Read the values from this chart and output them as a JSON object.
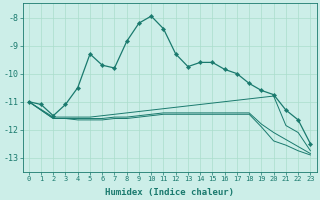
{
  "xlabel": "Humidex (Indice chaleur)",
  "xlim": [
    -0.5,
    23.5
  ],
  "ylim": [
    -13.5,
    -7.5
  ],
  "yticks": [
    -13,
    -12,
    -11,
    -10,
    -9,
    -8
  ],
  "xticks": [
    0,
    1,
    2,
    3,
    4,
    5,
    6,
    7,
    8,
    9,
    10,
    11,
    12,
    13,
    14,
    15,
    16,
    17,
    18,
    19,
    20,
    21,
    22,
    23
  ],
  "bg_color": "#cceee8",
  "line_color": "#1a7a6e",
  "grid_color": "#aaddcc",
  "line1_x": [
    0,
    1,
    2,
    3,
    4,
    5,
    6,
    7,
    8,
    9,
    10,
    11,
    12,
    13,
    14,
    15,
    16,
    17,
    18,
    19,
    20,
    21,
    22,
    23
  ],
  "line1_y": [
    -11.0,
    -11.1,
    -11.5,
    -11.1,
    -10.5,
    -9.3,
    -9.7,
    -9.8,
    -8.85,
    -8.2,
    -7.95,
    -8.4,
    -9.3,
    -9.75,
    -9.6,
    -9.6,
    -9.85,
    -10.0,
    -10.35,
    -10.6,
    -10.75,
    -11.3,
    -11.65,
    -12.5
  ],
  "line2_x": [
    0,
    2,
    3,
    4,
    5,
    6,
    7,
    8,
    9,
    10,
    11,
    12,
    13,
    14,
    15,
    16,
    17,
    18,
    19,
    20,
    21,
    22,
    23
  ],
  "line2_y": [
    -11.0,
    -11.55,
    -11.55,
    -11.55,
    -11.55,
    -11.5,
    -11.45,
    -11.4,
    -11.35,
    -11.3,
    -11.25,
    -11.2,
    -11.15,
    -11.1,
    -11.05,
    -11.0,
    -10.95,
    -10.9,
    -10.85,
    -10.8,
    -11.85,
    -12.1,
    -12.75
  ],
  "line3_x": [
    0,
    2,
    3,
    4,
    5,
    6,
    7,
    8,
    9,
    10,
    11,
    12,
    13,
    14,
    15,
    16,
    17,
    18,
    19,
    20,
    21,
    22,
    23
  ],
  "line3_y": [
    -11.0,
    -11.6,
    -11.6,
    -11.6,
    -11.6,
    -11.6,
    -11.55,
    -11.55,
    -11.5,
    -11.45,
    -11.4,
    -11.4,
    -11.4,
    -11.4,
    -11.4,
    -11.4,
    -11.4,
    -11.4,
    -11.8,
    -12.1,
    -12.35,
    -12.6,
    -12.85
  ],
  "line4_x": [
    0,
    2,
    3,
    4,
    5,
    6,
    7,
    8,
    9,
    10,
    11,
    12,
    13,
    14,
    15,
    16,
    17,
    18,
    19,
    20,
    21,
    22,
    23
  ],
  "line4_y": [
    -11.0,
    -11.6,
    -11.6,
    -11.65,
    -11.65,
    -11.65,
    -11.6,
    -11.6,
    -11.55,
    -11.5,
    -11.45,
    -11.45,
    -11.45,
    -11.45,
    -11.45,
    -11.45,
    -11.45,
    -11.45,
    -11.9,
    -12.4,
    -12.55,
    -12.75,
    -12.9
  ]
}
